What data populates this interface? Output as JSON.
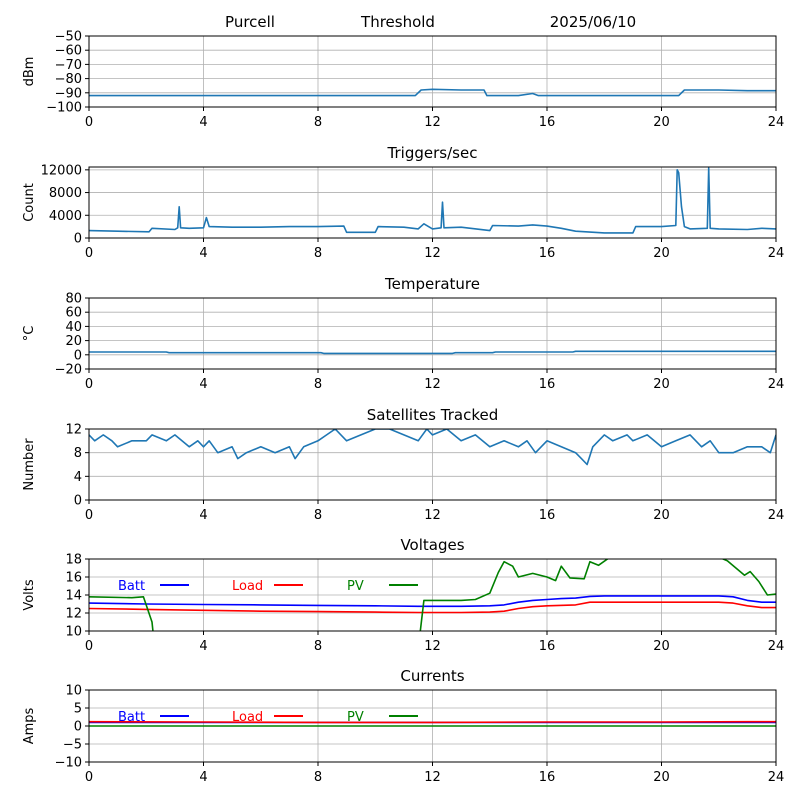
{
  "header": {
    "station": "Purcell",
    "mode": "Threshold",
    "date": "2025/06/10"
  },
  "colors": {
    "series_default": "#1f77b4",
    "batt": "#0000ff",
    "load": "#ff0000",
    "pv": "#008000",
    "grid": "#b0b0b0"
  },
  "chart_data": [
    {
      "id": "threshold",
      "type": "line",
      "title": "",
      "xlabel": "",
      "ylabel": "dBm",
      "xlim": [
        0,
        24
      ],
      "ylim": [
        -100,
        -50
      ],
      "xticks": [
        0,
        4,
        8,
        12,
        16,
        20,
        24
      ],
      "yticks": [
        -100,
        -90,
        -80,
        -70,
        -60,
        -50
      ],
      "grid": true,
      "series": [
        {
          "color": "#1f77b4",
          "x": [
            0,
            2,
            4,
            6,
            8,
            9,
            11,
            11.4,
            11.6,
            12,
            13,
            13.8,
            13.9,
            15,
            15.5,
            15.7,
            16,
            18,
            20,
            20.6,
            20.8,
            22,
            23,
            24
          ],
          "y": [
            -92,
            -92,
            -92,
            -92,
            -92,
            -92,
            -92,
            -92,
            -88,
            -87.5,
            -88,
            -88,
            -92,
            -92,
            -90.5,
            -92,
            -92,
            -92,
            -92,
            -92,
            -88,
            -88,
            -88.5,
            -88.5
          ]
        }
      ]
    },
    {
      "id": "triggers",
      "type": "line",
      "title": "Triggers/sec",
      "xlabel": "",
      "ylabel": "Count",
      "xlim": [
        0,
        24
      ],
      "ylim": [
        0,
        12500
      ],
      "xticks": [
        0,
        4,
        8,
        12,
        16,
        20,
        24
      ],
      "yticks": [
        0,
        4000,
        8000,
        12000
      ],
      "grid": true,
      "series": [
        {
          "color": "#1f77b4",
          "x": [
            0,
            1,
            2.1,
            2.2,
            3,
            3.1,
            3.15,
            3.2,
            3.5,
            4,
            4.1,
            4.2,
            5,
            6,
            7,
            8,
            8.9,
            9,
            10,
            10.1,
            11,
            11.5,
            11.7,
            12,
            12.3,
            12.35,
            12.4,
            13,
            14,
            14.1,
            15,
            15.5,
            16,
            16.5,
            17,
            18,
            19,
            19.1,
            20,
            20.5,
            20.55,
            20.6,
            20.7,
            20.8,
            21,
            21.6,
            21.65,
            21.7,
            22,
            23,
            23.5,
            24
          ],
          "y": [
            1300,
            1200,
            1100,
            1700,
            1500,
            1800,
            5500,
            1800,
            1700,
            1800,
            3600,
            2000,
            1900,
            1900,
            2000,
            2000,
            2100,
            1000,
            1000,
            2000,
            1900,
            1600,
            2500,
            1600,
            1800,
            6300,
            1800,
            1900,
            1300,
            2200,
            2100,
            2300,
            2100,
            1700,
            1200,
            900,
            900,
            2000,
            2000,
            2200,
            12000,
            11500,
            5500,
            2000,
            1600,
            1700,
            12300,
            1700,
            1600,
            1500,
            1700,
            1600
          ]
        }
      ]
    },
    {
      "id": "temperature",
      "type": "line",
      "title": "Temperature",
      "xlabel": "",
      "ylabel": "°C",
      "xlim": [
        0,
        24
      ],
      "ylim": [
        -20,
        80
      ],
      "xticks": [
        0,
        4,
        8,
        12,
        16,
        20,
        24
      ],
      "yticks": [
        -20,
        0,
        20,
        40,
        60,
        80
      ],
      "grid": true,
      "series": [
        {
          "color": "#1f77b4",
          "x": [
            0,
            2.7,
            2.8,
            8.1,
            8.2,
            12.7,
            12.8,
            14.1,
            14.2,
            16.9,
            17,
            24
          ],
          "y": [
            4,
            4,
            3,
            3,
            2,
            2,
            3,
            3,
            4,
            4,
            5,
            5
          ]
        }
      ]
    },
    {
      "id": "satellites",
      "type": "line",
      "title": "Satellites Tracked",
      "xlabel": "",
      "ylabel": "Number",
      "xlim": [
        0,
        24
      ],
      "ylim": [
        0,
        12
      ],
      "xticks": [
        0,
        4,
        8,
        12,
        16,
        20,
        24
      ],
      "yticks": [
        0,
        4,
        8,
        12
      ],
      "grid": true,
      "series": [
        {
          "color": "#1f77b4",
          "x": [
            0,
            0.2,
            0.5,
            0.8,
            1,
            1.5,
            2,
            2.2,
            2.7,
            3,
            3.5,
            3.8,
            4,
            4.2,
            4.5,
            5,
            5.2,
            5.5,
            6,
            6.5,
            7,
            7.2,
            7.5,
            8,
            8.3,
            8.6,
            9,
            9.5,
            10,
            10.5,
            11,
            11.5,
            11.8,
            12,
            12.5,
            13,
            13.5,
            14,
            14.5,
            15,
            15.3,
            15.6,
            16,
            16.5,
            17,
            17.2,
            17.4,
            17.6,
            18,
            18.3,
            18.8,
            19,
            19.5,
            20,
            20.5,
            21,
            21.4,
            21.7,
            22,
            22.5,
            23,
            23.5,
            23.8,
            24
          ],
          "y": [
            11,
            10,
            11,
            10,
            9,
            10,
            10,
            11,
            10,
            11,
            9,
            10,
            9,
            10,
            8,
            9,
            7,
            8,
            9,
            8,
            9,
            7,
            9,
            10,
            11,
            12,
            10,
            11,
            12,
            12,
            11,
            10,
            12,
            11,
            12,
            10,
            11,
            9,
            10,
            9,
            10,
            8,
            10,
            9,
            8,
            7,
            6,
            9,
            11,
            10,
            11,
            10,
            11,
            9,
            10,
            11,
            9,
            10,
            8,
            8,
            9,
            9,
            8,
            11
          ]
        }
      ]
    },
    {
      "id": "voltages",
      "type": "line",
      "title": "Voltages",
      "xlabel": "",
      "ylabel": "Volts",
      "xlim": [
        0,
        24
      ],
      "ylim": [
        10,
        18
      ],
      "xticks": [
        0,
        4,
        8,
        12,
        16,
        20,
        24
      ],
      "yticks": [
        10,
        12,
        14,
        16,
        18
      ],
      "grid": true,
      "legend": "top-left",
      "series": [
        {
          "name": "Batt",
          "color": "#0000ff",
          "x": [
            0,
            2,
            4,
            6,
            8,
            10,
            11.5,
            12,
            13,
            14,
            14.5,
            15,
            15.5,
            16,
            16.5,
            17,
            17.5,
            18,
            20,
            22,
            22.5,
            23,
            23.5,
            24
          ],
          "y": [
            13.1,
            13.0,
            12.95,
            12.9,
            12.85,
            12.8,
            12.75,
            12.75,
            12.75,
            12.8,
            12.9,
            13.2,
            13.4,
            13.5,
            13.6,
            13.65,
            13.85,
            13.9,
            13.9,
            13.9,
            13.8,
            13.4,
            13.2,
            13.2
          ]
        },
        {
          "name": "Load",
          "color": "#ff0000",
          "x": [
            0,
            2,
            4,
            6,
            8,
            10,
            11.5,
            12,
            13,
            14,
            14.5,
            15,
            15.5,
            16,
            17,
            17.5,
            18,
            20,
            22,
            22.5,
            23,
            23.5,
            24
          ],
          "y": [
            12.5,
            12.4,
            12.3,
            12.2,
            12.15,
            12.1,
            12.05,
            12.05,
            12.05,
            12.1,
            12.2,
            12.5,
            12.7,
            12.8,
            12.9,
            13.2,
            13.2,
            13.2,
            13.2,
            13.1,
            12.8,
            12.6,
            12.6
          ]
        },
        {
          "name": "PV",
          "color": "#008000",
          "x": [
            0,
            1.5,
            1.9,
            2.2,
            2.3,
            11.5,
            11.7,
            12,
            13,
            13.5,
            14,
            14.3,
            14.5,
            14.8,
            15,
            15.5,
            16,
            16.3,
            16.5,
            16.8,
            17.3,
            17.5,
            17.8,
            18.2,
            20,
            21.5,
            22,
            22.3,
            22.6,
            22.9,
            23.1,
            23.4,
            23.7,
            24
          ],
          "y": [
            13.8,
            13.7,
            13.8,
            11,
            8,
            8,
            13.4,
            13.4,
            13.4,
            13.5,
            14.2,
            16.5,
            17.7,
            17.2,
            16,
            16.4,
            16,
            15.6,
            17.2,
            15.9,
            15.8,
            17.7,
            17.3,
            18.2,
            18.5,
            18.4,
            18.2,
            17.8,
            17,
            16.2,
            16.6,
            15.5,
            14,
            14.1
          ]
        }
      ]
    },
    {
      "id": "currents",
      "type": "line",
      "title": "Currents",
      "xlabel": "",
      "ylabel": "Amps",
      "xlim": [
        0,
        24
      ],
      "ylim": [
        -10,
        10
      ],
      "xticks": [
        0,
        4,
        8,
        12,
        16,
        20,
        24
      ],
      "yticks": [
        -10,
        -5,
        0,
        5,
        10
      ],
      "grid": true,
      "legend": "top-left",
      "series": [
        {
          "name": "Batt",
          "color": "#0000ff",
          "x": [
            0,
            24
          ],
          "y": [
            1.0,
            1.0
          ]
        },
        {
          "name": "Load",
          "color": "#ff0000",
          "x": [
            0,
            4,
            8,
            12,
            16,
            20,
            23,
            24
          ],
          "y": [
            1.2,
            1.1,
            1.0,
            1.0,
            1.1,
            1.1,
            1.2,
            1.2
          ]
        },
        {
          "name": "PV",
          "color": "#008000",
          "x": [
            0,
            24
          ],
          "y": [
            0,
            0
          ]
        }
      ]
    }
  ]
}
